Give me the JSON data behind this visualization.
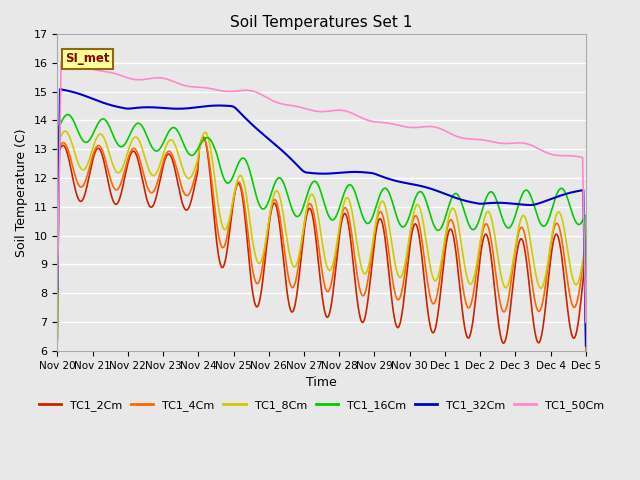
{
  "title": "Soil Temperatures Set 1",
  "xlabel": "Time",
  "ylabel": "Soil Temperature (C)",
  "ylim": [
    6.0,
    17.0
  ],
  "yticks": [
    6.0,
    7.0,
    8.0,
    9.0,
    10.0,
    11.0,
    12.0,
    13.0,
    14.0,
    15.0,
    16.0,
    17.0
  ],
  "background_color": "#e8e8e8",
  "plot_bg_color": "#e8e8e8",
  "grid_color": "#ffffff",
  "annotation_text": "SI_met",
  "annotation_color": "#8b0000",
  "annotation_bg": "#ffff99",
  "annotation_border": "#8b6914",
  "series": {
    "TC1_2Cm": {
      "color": "#cc2200",
      "lw": 1.2
    },
    "TC1_4Cm": {
      "color": "#ff6600",
      "lw": 1.2
    },
    "TC1_8Cm": {
      "color": "#cccc00",
      "lw": 1.2
    },
    "TC1_16Cm": {
      "color": "#00cc00",
      "lw": 1.2
    },
    "TC1_32Cm": {
      "color": "#0000cc",
      "lw": 1.5
    },
    "TC1_50Cm": {
      "color": "#ff88cc",
      "lw": 1.2
    }
  },
  "xtick_labels": [
    "Nov 20",
    "Nov 21",
    "Nov 22",
    "Nov 23",
    "Nov 24",
    "Nov 25",
    "Nov 26",
    "Nov 27",
    "Nov 28",
    "Nov 29",
    "Nov 30",
    "Dec 1",
    "Dec 2",
    "Dec 3",
    "Dec 4",
    "Dec 5"
  ],
  "num_points": 1440
}
